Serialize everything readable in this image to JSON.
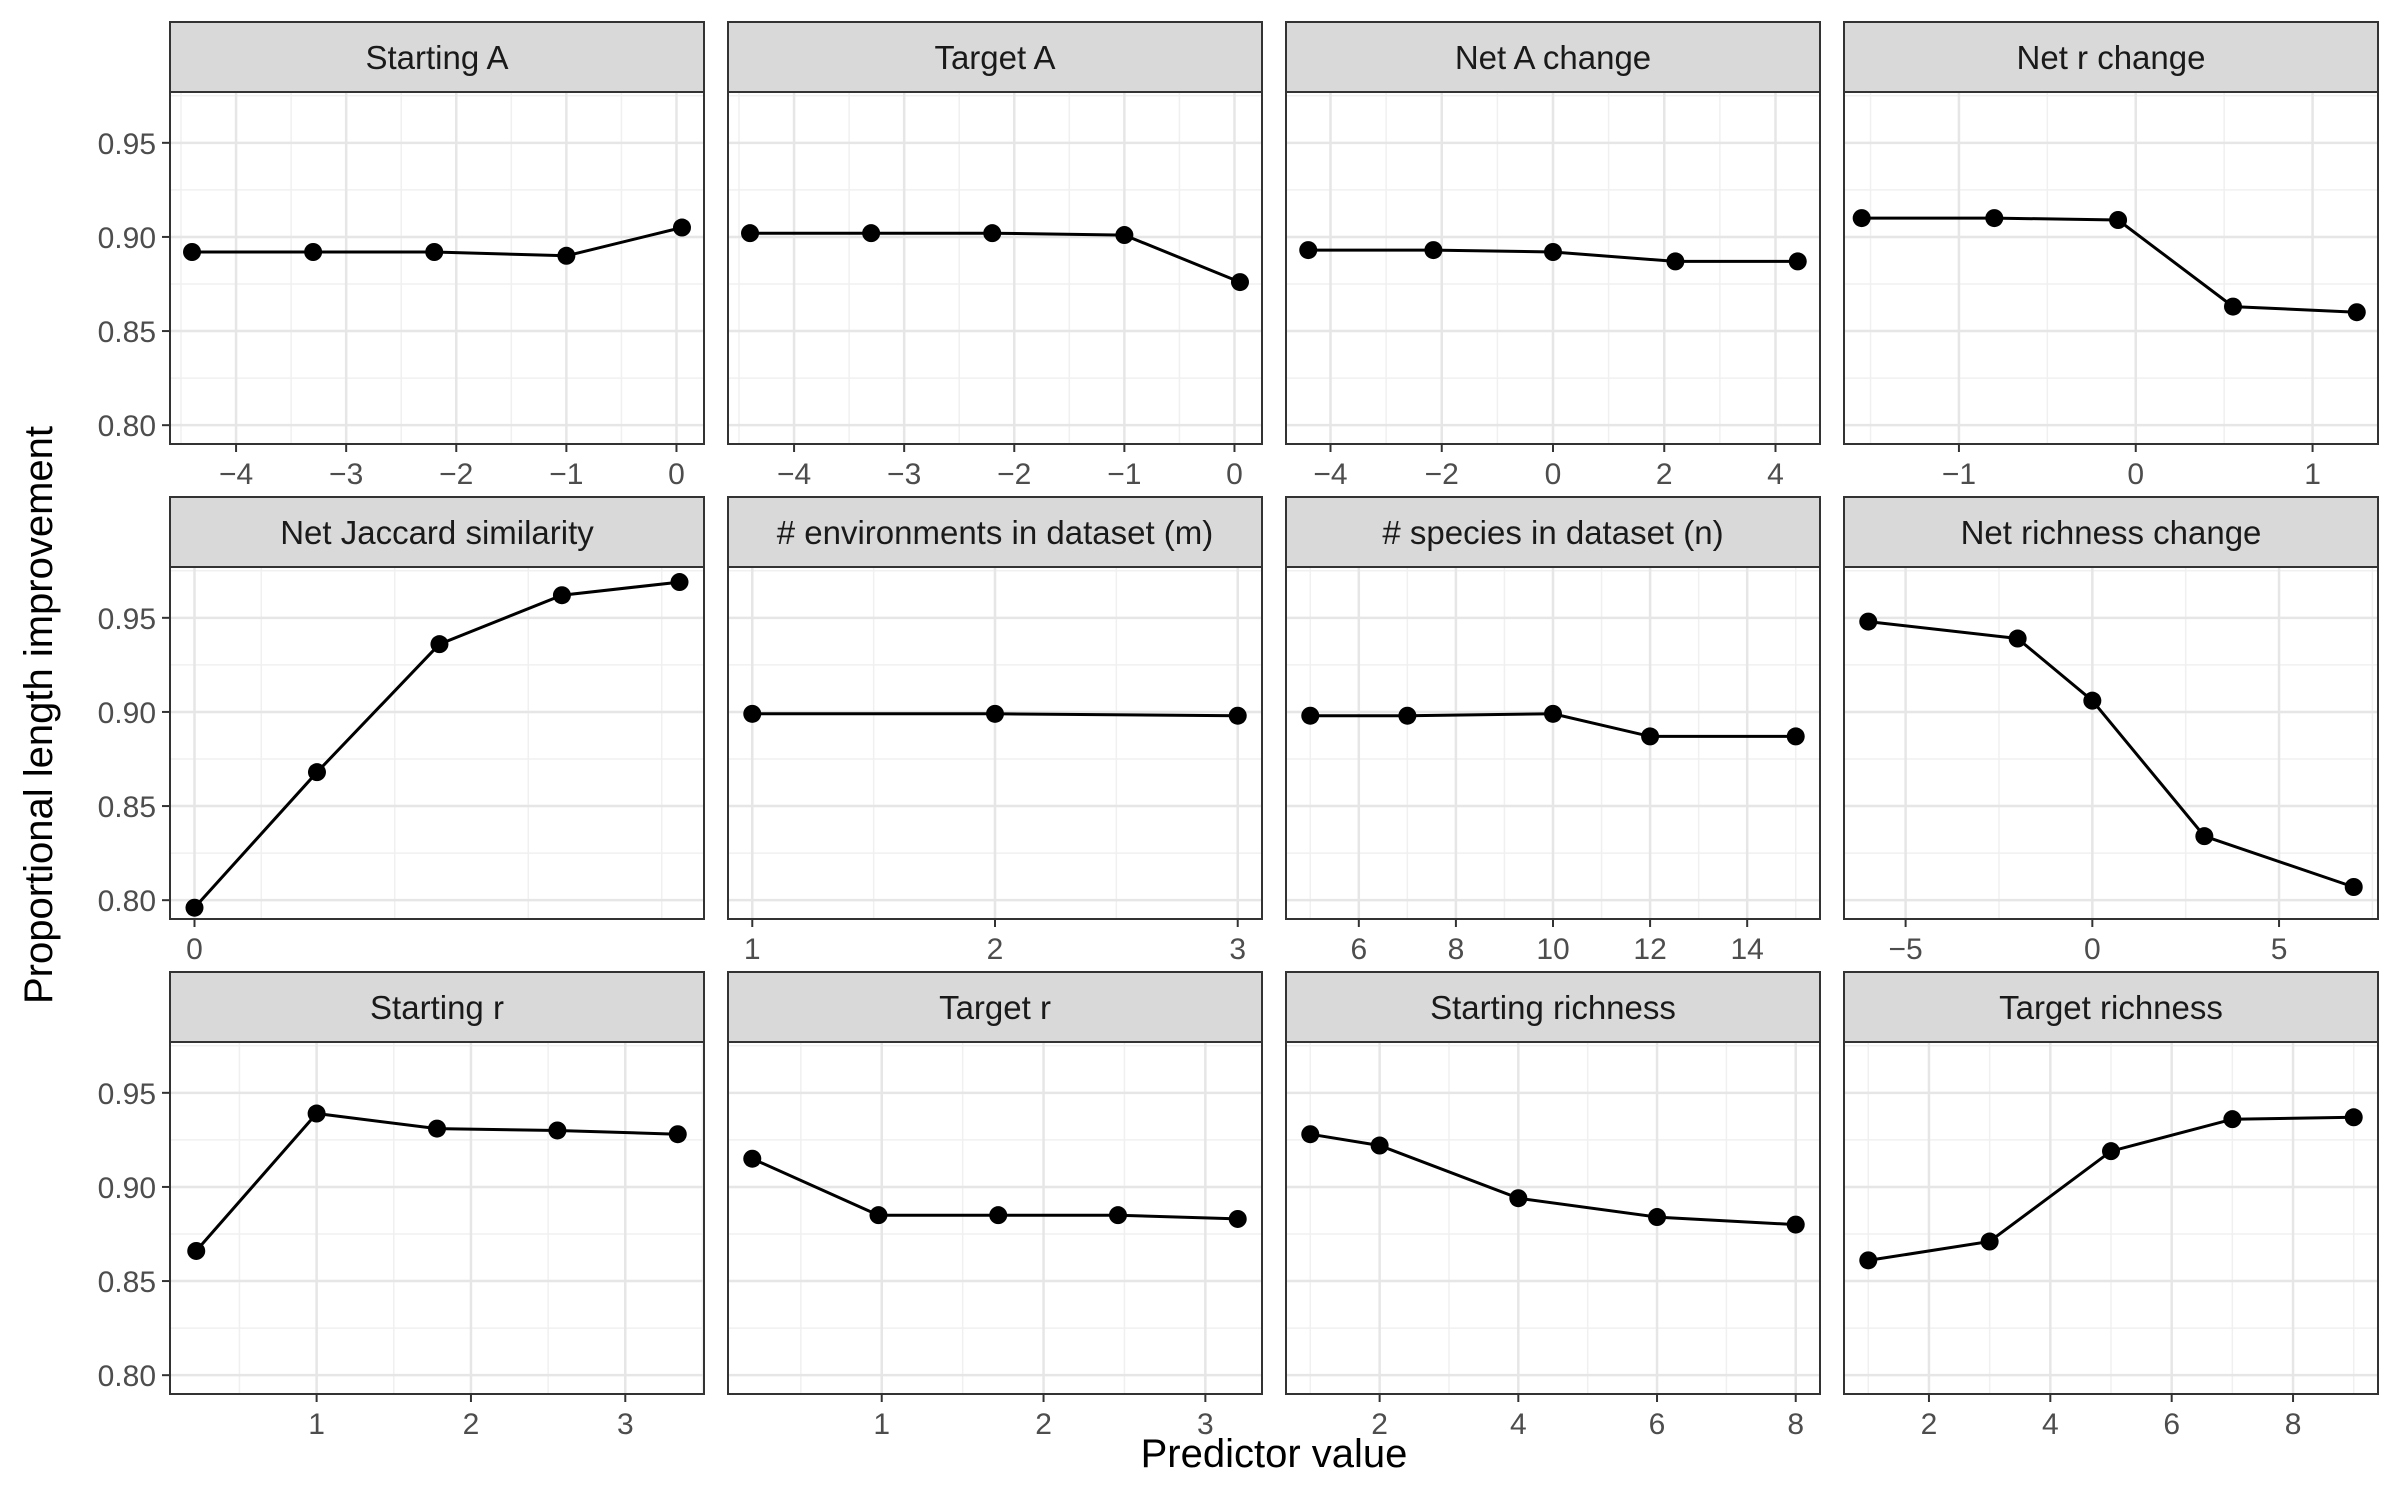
{
  "figure": {
    "xlabel": "Predictor value",
    "ylabel": "Proportional length improvement"
  },
  "chart_data": [
    {
      "type": "line",
      "title": "Starting A",
      "x": [
        -4.4,
        -3.3,
        -2.2,
        -1.0,
        0.05
      ],
      "values": [
        0.892,
        0.892,
        0.892,
        0.89,
        0.905
      ],
      "xlim": [
        -4.6,
        0.25
      ],
      "xticks": [
        -4,
        -3,
        -2,
        -1,
        0
      ],
      "ylim": [
        0.79,
        0.977
      ],
      "yticks": [
        0.8,
        0.85,
        0.9,
        0.95
      ],
      "grid": true
    },
    {
      "type": "line",
      "title": "Target A",
      "x": [
        -4.4,
        -3.3,
        -2.2,
        -1.0,
        0.05
      ],
      "values": [
        0.902,
        0.902,
        0.902,
        0.901,
        0.876
      ],
      "xlim": [
        -4.6,
        0.25
      ],
      "xticks": [
        -4,
        -3,
        -2,
        -1,
        0
      ],
      "ylim": [
        0.79,
        0.977
      ],
      "yticks": [
        0.8,
        0.85,
        0.9,
        0.95
      ],
      "grid": true
    },
    {
      "type": "line",
      "title": "Net A change",
      "x": [
        -4.4,
        -2.15,
        0.0,
        2.2,
        4.4
      ],
      "values": [
        0.893,
        0.893,
        0.892,
        0.887,
        0.887
      ],
      "xlim": [
        -4.8,
        4.8
      ],
      "xticks": [
        -4,
        -2,
        0,
        2,
        4
      ],
      "ylim": [
        0.79,
        0.977
      ],
      "yticks": [
        0.8,
        0.85,
        0.9,
        0.95
      ],
      "grid": true
    },
    {
      "type": "line",
      "title": "Net r change",
      "x": [
        -1.55,
        -0.8,
        -0.1,
        0.55,
        1.25
      ],
      "values": [
        0.91,
        0.91,
        0.909,
        0.863,
        0.86
      ],
      "xlim": [
        -1.65,
        1.37
      ],
      "xticks": [
        -1,
        0,
        1
      ],
      "ylim": [
        0.79,
        0.977
      ],
      "yticks": [
        0.8,
        0.85,
        0.9,
        0.95
      ],
      "grid": true
    },
    {
      "type": "line",
      "title": "Net Jaccard similarity",
      "x": [
        0.0,
        0.25,
        0.5,
        0.75,
        0.99
      ],
      "values": [
        0.796,
        0.868,
        0.936,
        0.962,
        0.969
      ],
      "xlim": [
        -0.05,
        1.04
      ],
      "xticks": [
        0
      ],
      "ylim": [
        0.79,
        0.977
      ],
      "yticks": [
        0.8,
        0.85,
        0.9,
        0.95
      ],
      "grid": true
    },
    {
      "type": "line",
      "title": "# environments in dataset (m)",
      "x": [
        1,
        2,
        3
      ],
      "values": [
        0.899,
        0.899,
        0.898
      ],
      "xlim": [
        0.9,
        3.1
      ],
      "xticks": [
        1,
        2,
        3
      ],
      "ylim": [
        0.79,
        0.977
      ],
      "yticks": [
        0.8,
        0.85,
        0.9,
        0.95
      ],
      "grid": true
    },
    {
      "type": "line",
      "title": "# species in dataset (n)",
      "x": [
        5,
        7,
        10,
        12,
        15
      ],
      "values": [
        0.898,
        0.898,
        0.899,
        0.887,
        0.887
      ],
      "xlim": [
        4.5,
        15.5
      ],
      "xticks": [
        6,
        8,
        10,
        12,
        14
      ],
      "ylim": [
        0.79,
        0.977
      ],
      "yticks": [
        0.8,
        0.85,
        0.9,
        0.95
      ],
      "grid": true
    },
    {
      "type": "line",
      "title": "Net richness change",
      "x": [
        -6,
        -2,
        0,
        3,
        7
      ],
      "values": [
        0.948,
        0.939,
        0.906,
        0.834,
        0.807
      ],
      "xlim": [
        -6.65,
        7.65
      ],
      "xticks": [
        -5,
        0,
        5
      ],
      "ylim": [
        0.79,
        0.977
      ],
      "yticks": [
        0.8,
        0.85,
        0.9,
        0.95
      ],
      "grid": true
    },
    {
      "type": "line",
      "title": "Starting r",
      "x": [
        0.22,
        1.0,
        1.78,
        2.56,
        3.34
      ],
      "values": [
        0.866,
        0.939,
        0.931,
        0.93,
        0.928
      ],
      "xlim": [
        0.05,
        3.51
      ],
      "xticks": [
        1,
        2,
        3
      ],
      "ylim": [
        0.79,
        0.977
      ],
      "yticks": [
        0.8,
        0.85,
        0.9,
        0.95
      ],
      "grid": true
    },
    {
      "type": "line",
      "title": "Target r",
      "x": [
        0.2,
        0.98,
        1.72,
        2.46,
        3.2
      ],
      "values": [
        0.915,
        0.885,
        0.885,
        0.885,
        0.883
      ],
      "xlim": [
        0.05,
        3.35
      ],
      "xticks": [
        1,
        2,
        3
      ],
      "ylim": [
        0.79,
        0.977
      ],
      "yticks": [
        0.8,
        0.85,
        0.9,
        0.95
      ],
      "grid": true
    },
    {
      "type": "line",
      "title": "Starting richness",
      "x": [
        1,
        2,
        4,
        6,
        8
      ],
      "values": [
        0.928,
        0.922,
        0.894,
        0.884,
        0.88
      ],
      "xlim": [
        0.65,
        8.35
      ],
      "xticks": [
        2,
        4,
        6,
        8
      ],
      "ylim": [
        0.79,
        0.977
      ],
      "yticks": [
        0.8,
        0.85,
        0.9,
        0.95
      ],
      "grid": true
    },
    {
      "type": "line",
      "title": "Target richness",
      "x": [
        1,
        3,
        5,
        7,
        9
      ],
      "values": [
        0.861,
        0.871,
        0.919,
        0.936,
        0.937
      ],
      "xlim": [
        0.6,
        9.4
      ],
      "xticks": [
        2,
        4,
        6,
        8
      ],
      "ylim": [
        0.79,
        0.977
      ],
      "yticks": [
        0.8,
        0.85,
        0.9,
        0.95
      ],
      "grid": true
    }
  ]
}
